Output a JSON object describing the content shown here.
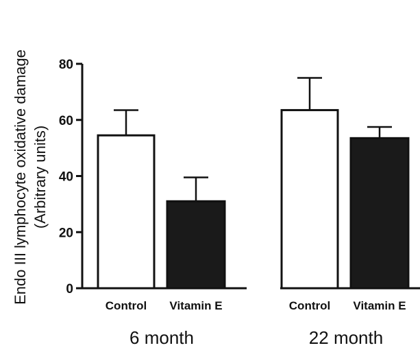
{
  "chart_data": {
    "type": "bar",
    "title": "",
    "ylabel_lines": [
      "Endo III lymphocyte  oxidative damage",
      "(Arbitrary units)"
    ],
    "xlabel": "",
    "ylim": [
      0,
      80
    ],
    "yticks": [
      "0",
      "20",
      "40",
      "60",
      "80"
    ],
    "groups": [
      {
        "label": "6 month",
        "bars": [
          {
            "category": "Control",
            "value": 54.5,
            "error": 9,
            "fill": "#ffffff"
          },
          {
            "category": "Vitamin E",
            "value": 31,
            "error": 8.5,
            "fill": "#1a1a1a"
          }
        ]
      },
      {
        "label": "22 month",
        "bars": [
          {
            "category": "Control",
            "value": 63.5,
            "error": 11.5,
            "fill": "#ffffff"
          },
          {
            "category": "Vitamin E",
            "value": 53.5,
            "error": 4,
            "fill": "#1a1a1a"
          }
        ]
      }
    ],
    "grid": false,
    "legend": "none"
  },
  "colors": {
    "axis": "#111111",
    "control_fill": "#ffffff",
    "vitamin_fill": "#1a1a1a"
  }
}
